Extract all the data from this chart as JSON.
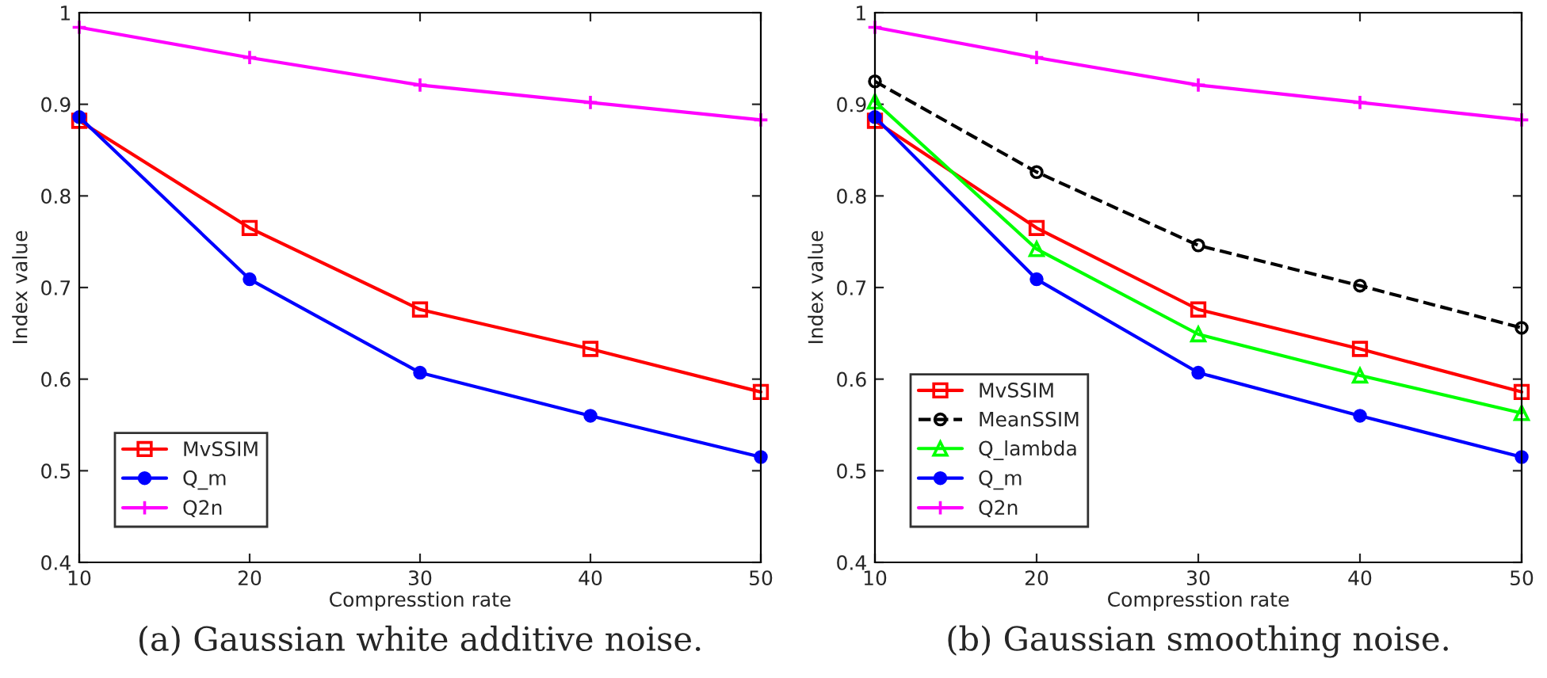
{
  "chart_data": [
    {
      "type": "line",
      "xlabel": "Compresstion rate",
      "ylabel": "Index value",
      "x": [
        10,
        20,
        30,
        40,
        50
      ],
      "xlim": [
        10,
        50
      ],
      "ylim": [
        0.4,
        1
      ],
      "xticks": [
        10,
        20,
        30,
        40,
        50
      ],
      "yticks": [
        0.4,
        0.5,
        0.6,
        0.7,
        0.8,
        0.9,
        1
      ],
      "grid": false,
      "legend": "bottom left",
      "annotations": [
        "(a) Gaussian white additive noise."
      ],
      "series": [
        {
          "name": "MvSSIM",
          "color": "#ff0000",
          "marker": "square",
          "line_style": "solid",
          "values": [
            0.882,
            0.765,
            0.676,
            0.633,
            0.586
          ]
        },
        {
          "name": "Q_m",
          "color": "#0000ff",
          "marker": "circle",
          "line_style": "solid",
          "values": [
            0.886,
            0.709,
            0.607,
            0.56,
            0.515
          ]
        },
        {
          "name": "Q2n",
          "color": "#ff00ff",
          "marker": "cross",
          "line_style": "solid",
          "values": [
            0.984,
            0.951,
            0.921,
            0.902,
            0.883
          ]
        }
      ]
    },
    {
      "type": "line",
      "xlabel": "Compresstion rate",
      "ylabel": "Index value",
      "x": [
        10,
        20,
        30,
        40,
        50
      ],
      "xlim": [
        10,
        50
      ],
      "ylim": [
        0.4,
        1
      ],
      "xticks": [
        10,
        20,
        30,
        40,
        50
      ],
      "yticks": [
        0.4,
        0.5,
        0.6,
        0.7,
        0.8,
        0.9,
        1
      ],
      "grid": false,
      "legend": "bottom left",
      "annotations": [
        "(b) Gaussian smoothing noise."
      ],
      "series": [
        {
          "name": "MvSSIM",
          "color": "#ff0000",
          "marker": "square",
          "line_style": "solid",
          "values": [
            0.882,
            0.765,
            0.676,
            0.633,
            0.586
          ]
        },
        {
          "name": "MeanSSIM",
          "color": "#000000",
          "marker": "circle",
          "line_style": "dashed",
          "values": [
            0.925,
            0.826,
            0.746,
            0.702,
            0.656
          ]
        },
        {
          "name": "Q_lambda",
          "color": "#00ff00",
          "marker": "triangle",
          "line_style": "solid",
          "values": [
            0.903,
            0.742,
            0.649,
            0.604,
            0.563
          ]
        },
        {
          "name": "Q_m",
          "color": "#0000ff",
          "marker": "circle",
          "line_style": "solid",
          "values": [
            0.886,
            0.709,
            0.607,
            0.56,
            0.515
          ]
        },
        {
          "name": "Q2n",
          "color": "#ff00ff",
          "marker": "cross",
          "line_style": "solid",
          "values": [
            0.984,
            0.951,
            0.921,
            0.902,
            0.883
          ]
        }
      ]
    }
  ]
}
